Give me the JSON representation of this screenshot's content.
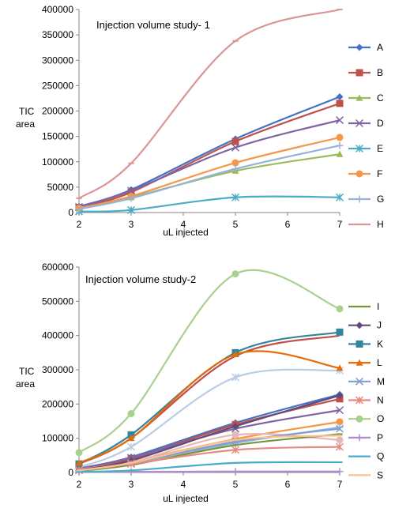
{
  "chart_data": [
    {
      "type": "line",
      "title": "Injection volume  study- 1",
      "xlabel": "uL injected",
      "ylabel": [
        "TIC",
        "area"
      ],
      "xlim": [
        2,
        7
      ],
      "ylim": [
        0,
        400000
      ],
      "xticks": [
        "2",
        "3",
        "4",
        "5",
        "6",
        "7"
      ],
      "yticks": [
        "0",
        "50000",
        "100000",
        "150000",
        "200000",
        "250000",
        "300000",
        "350000",
        "400000"
      ],
      "x": [
        2,
        3,
        5,
        7
      ],
      "grid": false,
      "legend_position": "right",
      "series": [
        {
          "name": "A",
          "color": "#4472C4",
          "marker": "diamond",
          "values": [
            12000,
            45000,
            145000,
            228000
          ]
        },
        {
          "name": "B",
          "color": "#C0504D",
          "marker": "square",
          "values": [
            10000,
            40000,
            140000,
            215000
          ]
        },
        {
          "name": "C",
          "color": "#9BBB59",
          "marker": "triangle",
          "values": [
            8000,
            30000,
            82000,
            115000
          ]
        },
        {
          "name": "D",
          "color": "#8064A2",
          "marker": "x",
          "values": [
            11000,
            43000,
            128000,
            182000
          ]
        },
        {
          "name": "E",
          "color": "#4BACC6",
          "marker": "star",
          "values": [
            2000,
            5000,
            30000,
            30000
          ]
        },
        {
          "name": "F",
          "color": "#F79646",
          "marker": "circle",
          "values": [
            9000,
            32000,
            98000,
            148000
          ]
        },
        {
          "name": "G",
          "color": "#95B3D7",
          "marker": "plus",
          "values": [
            7000,
            28000,
            86000,
            132000
          ]
        },
        {
          "name": "H",
          "color": "#D99694",
          "marker": "dash",
          "values": [
            28000,
            97000,
            338000,
            400000
          ]
        }
      ]
    },
    {
      "type": "line",
      "title": "Injection volume  study-2",
      "xlabel": "uL injected",
      "ylabel": [
        "TIC",
        "area"
      ],
      "xlim": [
        2,
        7
      ],
      "ylim": [
        0,
        600000
      ],
      "xticks": [
        "2",
        "3",
        "4",
        "5",
        "6",
        "7"
      ],
      "yticks": [
        "0",
        "100000",
        "200000",
        "300000",
        "400000",
        "500000",
        "600000"
      ],
      "x": [
        2,
        3,
        5,
        7
      ],
      "grid": false,
      "legend_position": "right",
      "hidden_series": [
        {
          "color": "#4472C4",
          "marker": "diamond",
          "values": [
            12000,
            45000,
            145000,
            228000
          ]
        },
        {
          "color": "#C0504D",
          "marker": "square",
          "values": [
            10000,
            40000,
            140000,
            215000
          ]
        },
        {
          "color": "#8064A2",
          "marker": "x",
          "values": [
            11000,
            43000,
            128000,
            182000
          ]
        },
        {
          "color": "#F79646",
          "marker": "circle",
          "values": [
            9000,
            32000,
            98000,
            148000
          ]
        },
        {
          "color": "#95B3D7",
          "marker": "plus",
          "values": [
            7000,
            28000,
            86000,
            132000
          ]
        },
        {
          "color": "#C0504D",
          "marker": "none",
          "values": [
            25000,
            100000,
            340000,
            400000
          ]
        },
        {
          "color": "#B9CDE5",
          "marker": "star",
          "values": [
            15000,
            75000,
            278000,
            298000
          ]
        },
        {
          "color": "#E6B9B8",
          "marker": "circle",
          "values": [
            10000,
            30000,
            110000,
            95000
          ]
        }
      ],
      "series": [
        {
          "name": "I",
          "color": "#77933C",
          "marker": "dash",
          "values": [
            5000,
            22000,
            80000,
            112000
          ]
        },
        {
          "name": "J",
          "color": "#604A7B",
          "marker": "diamond",
          "values": [
            8000,
            35000,
            135000,
            225000
          ]
        },
        {
          "name": "K",
          "color": "#31859C",
          "marker": "square",
          "values": [
            25000,
            110000,
            350000,
            410000
          ]
        },
        {
          "name": "L",
          "color": "#E46C0A",
          "marker": "triangle",
          "values": [
            28000,
            100000,
            345000,
            305000
          ]
        },
        {
          "name": "M",
          "color": "#7F9FD1",
          "marker": "x",
          "values": [
            6000,
            27000,
            90000,
            128000
          ]
        },
        {
          "name": "N",
          "color": "#E48B82",
          "marker": "star",
          "values": [
            7000,
            25000,
            66000,
            75000
          ]
        },
        {
          "name": "O",
          "color": "#A9D18E",
          "marker": "circle",
          "values": [
            58000,
            172000,
            580000,
            478000
          ]
        },
        {
          "name": "P",
          "color": "#B18CD1",
          "marker": "plus",
          "values": [
            2000,
            2000,
            3000,
            3000
          ]
        },
        {
          "name": "Q",
          "color": "#4BACC6",
          "marker": "dash",
          "values": [
            2000,
            6000,
            28000,
            30000
          ]
        },
        {
          "name": "S",
          "color": "#FAC090",
          "marker": "dash",
          "values": [
            6000,
            28000,
            95000,
            108000
          ]
        }
      ]
    }
  ]
}
